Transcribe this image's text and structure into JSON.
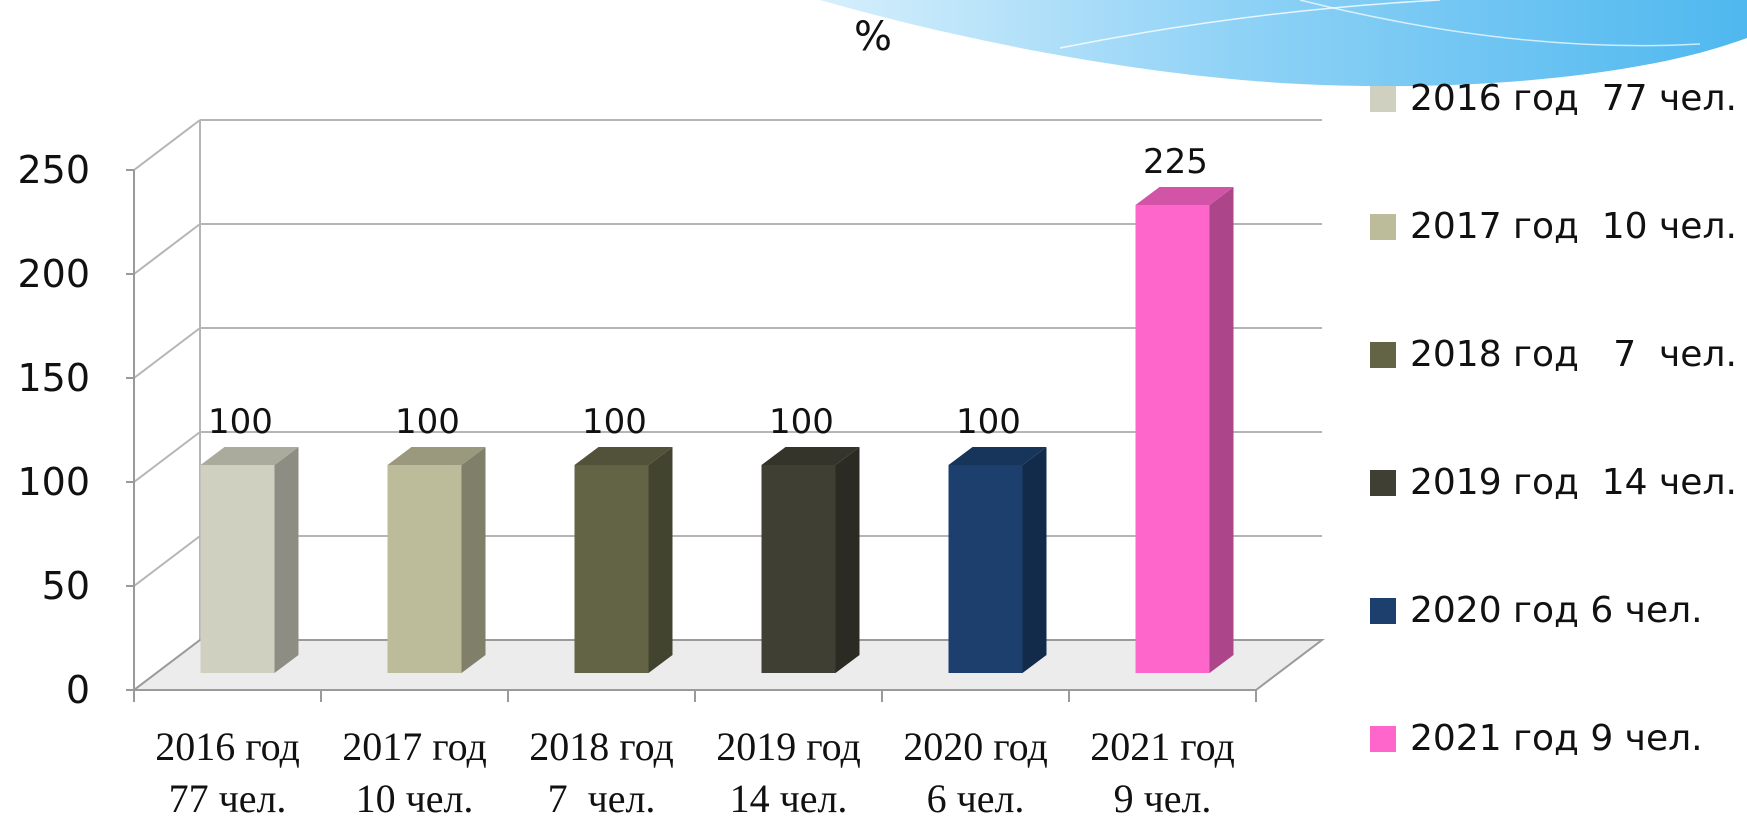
{
  "chart_data": {
    "type": "bar",
    "title": "%",
    "categories": [
      "2016 год 77 чел.",
      "2017 год 10 чел.",
      "2018 год 7 чел.",
      "2019 год 14 чел.",
      "2020 год 6 чел.",
      "2021 год 9 чел."
    ],
    "category_lines": [
      [
        "2016 год",
        "77 чел."
      ],
      [
        "2017 год",
        "10 чел."
      ],
      [
        "2018 год",
        "7  чел."
      ],
      [
        "2019 год",
        "14 чел."
      ],
      [
        "2020 год",
        "6 чел."
      ],
      [
        "2021 год",
        "9 чел."
      ]
    ],
    "values": [
      100,
      100,
      100,
      100,
      100,
      225
    ],
    "data_labels": [
      "100",
      "100",
      "100",
      "100",
      "100",
      "225"
    ],
    "colors": [
      "#d0d0c0",
      "#bcbb9a",
      "#636446",
      "#3f3f33",
      "#1c3f6e",
      "#ff66cc"
    ],
    "legend": [
      "2016 год  77 чел.",
      "2017 год  10 чел.",
      "2018 год   7  чел.",
      "2019 год  14 чел.",
      "2020 год 6 чел.",
      "2021 год 9 чел."
    ],
    "ylim": [
      0,
      250
    ],
    "yticks": [
      0,
      50,
      100,
      150,
      200,
      250
    ],
    "grid": true,
    "legend_position": "right",
    "style": "3d"
  }
}
